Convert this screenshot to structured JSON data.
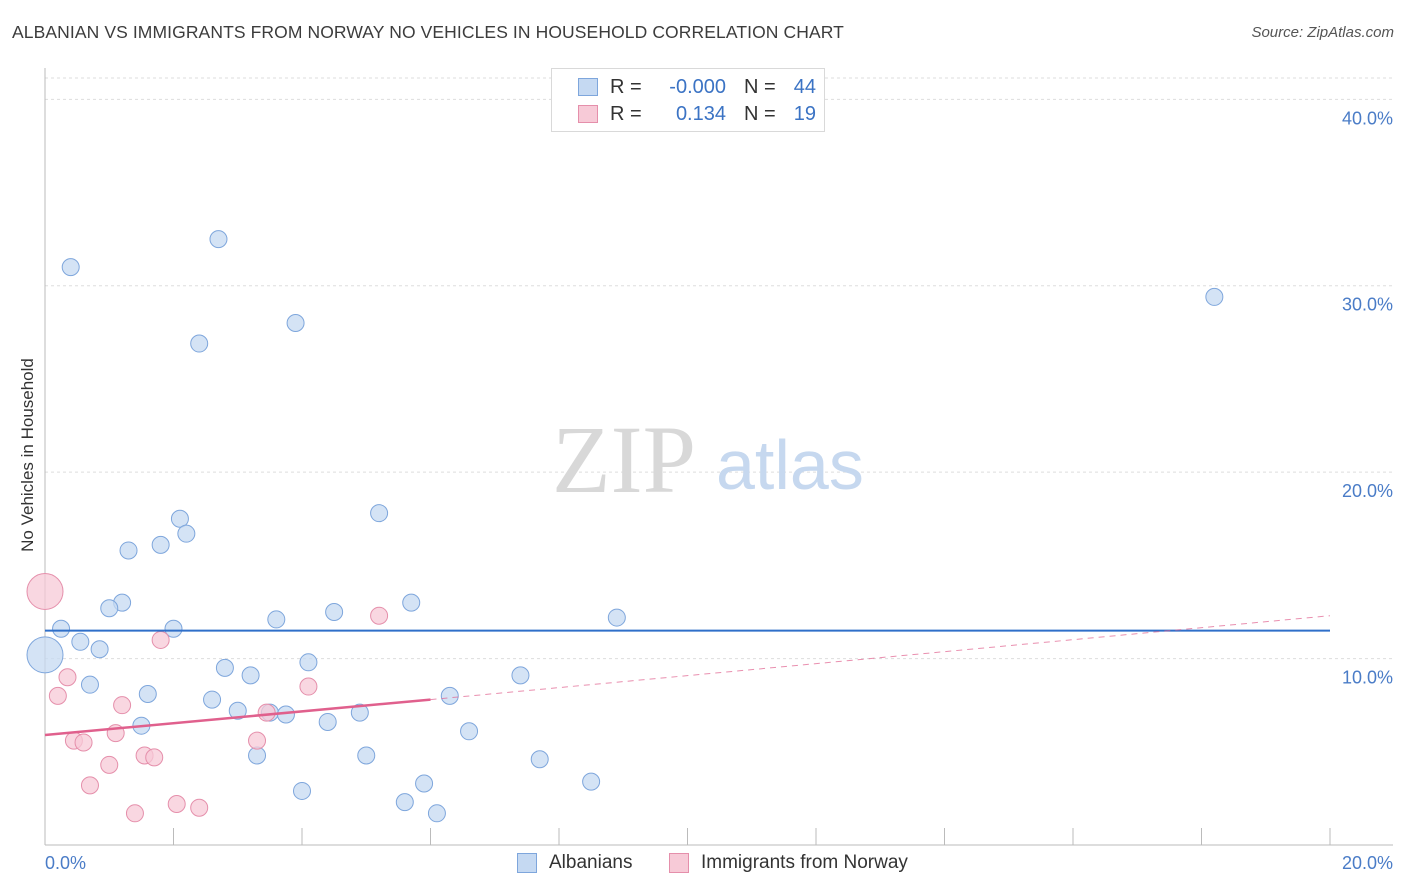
{
  "title": "ALBANIAN VS IMMIGRANTS FROM NORWAY NO VEHICLES IN HOUSEHOLD CORRELATION CHART",
  "source": "Source: ZipAtlas.com",
  "watermark": {
    "zip": "ZIP",
    "atlas": "atlas"
  },
  "legend": {
    "rows": [
      {
        "r_label": "R =",
        "r_value": "-0.000",
        "n_label": "N =",
        "n_value": "44"
      },
      {
        "r_label": "R =",
        "r_value": "0.134",
        "n_label": "N =",
        "n_value": "19"
      }
    ]
  },
  "bottom_legend": [
    "Albanians",
    "Immigrants from Norway"
  ],
  "colors": {
    "blue_fill": "#c5d9f2",
    "blue_stroke": "#7ea6dc",
    "blue_line": "#2f6fc9",
    "pink_fill": "#f7cad7",
    "pink_stroke": "#e58fab",
    "pink_line": "#e0608d",
    "grid": "#dddddd",
    "tick_text": "#4a7cc7"
  },
  "chart_data": {
    "type": "scatter",
    "title": "ALBANIAN VS IMMIGRANTS FROM NORWAY NO VEHICLES IN HOUSEHOLD CORRELATION CHART",
    "xlabel": "",
    "ylabel": "No Vehicles in Household",
    "xlim": [
      0,
      20
    ],
    "ylim": [
      0,
      40.5
    ],
    "y_ticks": [
      "10.0%",
      "20.0%",
      "30.0%",
      "40.0%"
    ],
    "y_tick_values": [
      10,
      20,
      30,
      40
    ],
    "x_tick_labels": [
      "0.0%",
      "20.0%"
    ],
    "x_tick_label_values": [
      0,
      20
    ],
    "series": [
      {
        "name": "Albanians",
        "r": -0.0,
        "n": 44,
        "trend": {
          "x": [
            0,
            20
          ],
          "y": [
            11.5,
            11.5
          ],
          "dashed_to": null
        },
        "points": [
          {
            "x": 0.0,
            "y": 10.2,
            "big": true
          },
          {
            "x": 0.4,
            "y": 31.0
          },
          {
            "x": 2.7,
            "y": 32.5
          },
          {
            "x": 2.4,
            "y": 26.9
          },
          {
            "x": 3.9,
            "y": 28.0
          },
          {
            "x": 18.2,
            "y": 29.4
          },
          {
            "x": 5.2,
            "y": 17.8
          },
          {
            "x": 2.1,
            "y": 17.5
          },
          {
            "x": 2.2,
            "y": 16.7
          },
          {
            "x": 1.8,
            "y": 16.1
          },
          {
            "x": 1.3,
            "y": 15.8
          },
          {
            "x": 1.2,
            "y": 13.0
          },
          {
            "x": 1.0,
            "y": 12.7
          },
          {
            "x": 3.6,
            "y": 12.1
          },
          {
            "x": 4.5,
            "y": 12.5
          },
          {
            "x": 5.7,
            "y": 13.0
          },
          {
            "x": 8.9,
            "y": 12.2
          },
          {
            "x": 0.25,
            "y": 11.6
          },
          {
            "x": 2.0,
            "y": 11.6
          },
          {
            "x": 0.55,
            "y": 10.9
          },
          {
            "x": 0.85,
            "y": 10.5
          },
          {
            "x": 4.1,
            "y": 9.8
          },
          {
            "x": 2.8,
            "y": 9.5
          },
          {
            "x": 3.2,
            "y": 9.1
          },
          {
            "x": 7.4,
            "y": 9.1
          },
          {
            "x": 0.7,
            "y": 8.6
          },
          {
            "x": 1.6,
            "y": 8.1
          },
          {
            "x": 2.6,
            "y": 7.8
          },
          {
            "x": 6.3,
            "y": 8.0
          },
          {
            "x": 3.0,
            "y": 7.2
          },
          {
            "x": 3.5,
            "y": 7.1
          },
          {
            "x": 3.75,
            "y": 7.0
          },
          {
            "x": 4.9,
            "y": 7.1
          },
          {
            "x": 1.5,
            "y": 6.4
          },
          {
            "x": 4.4,
            "y": 6.6
          },
          {
            "x": 6.6,
            "y": 6.1
          },
          {
            "x": 3.3,
            "y": 4.8
          },
          {
            "x": 5.0,
            "y": 4.8
          },
          {
            "x": 7.7,
            "y": 4.6
          },
          {
            "x": 8.5,
            "y": 3.4
          },
          {
            "x": 5.9,
            "y": 3.3
          },
          {
            "x": 4.0,
            "y": 2.9
          },
          {
            "x": 5.6,
            "y": 2.3
          },
          {
            "x": 6.1,
            "y": 1.7
          }
        ]
      },
      {
        "name": "Immigrants from Norway",
        "r": 0.134,
        "n": 19,
        "trend": {
          "x": [
            0,
            6.0
          ],
          "y": [
            5.9,
            7.8
          ],
          "dashed_x": [
            6.0,
            20
          ],
          "dashed_y": [
            7.8,
            12.3
          ]
        },
        "points": [
          {
            "x": 0.0,
            "y": 13.6,
            "big": true
          },
          {
            "x": 5.2,
            "y": 12.3
          },
          {
            "x": 1.8,
            "y": 11.0
          },
          {
            "x": 0.35,
            "y": 9.0
          },
          {
            "x": 0.2,
            "y": 8.0
          },
          {
            "x": 4.1,
            "y": 8.5
          },
          {
            "x": 1.2,
            "y": 7.5
          },
          {
            "x": 3.45,
            "y": 7.1
          },
          {
            "x": 1.1,
            "y": 6.0
          },
          {
            "x": 0.45,
            "y": 5.6
          },
          {
            "x": 0.6,
            "y": 5.5
          },
          {
            "x": 3.3,
            "y": 5.6
          },
          {
            "x": 1.55,
            "y": 4.8
          },
          {
            "x": 1.7,
            "y": 4.7
          },
          {
            "x": 1.0,
            "y": 4.3
          },
          {
            "x": 0.7,
            "y": 3.2
          },
          {
            "x": 2.05,
            "y": 2.2
          },
          {
            "x": 2.4,
            "y": 2.0
          },
          {
            "x": 1.4,
            "y": 1.7
          }
        ]
      }
    ]
  }
}
